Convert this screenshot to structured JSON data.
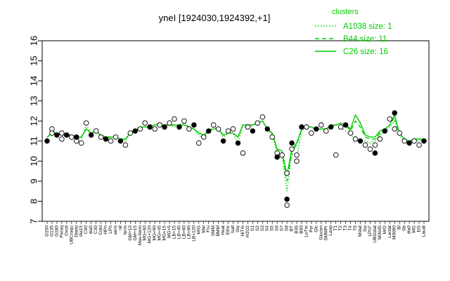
{
  "chart_data": {
    "type": "line",
    "title": "yneI [1924030,1924392,+1]",
    "ylim": [
      7,
      16
    ],
    "yticks": [
      7,
      8,
      9,
      10,
      11,
      12,
      13,
      14,
      15,
      16
    ],
    "grid": false,
    "legend": {
      "title": "clusters",
      "placement": "top-right",
      "color": "#00cc00",
      "entries": [
        {
          "label": "A1038 size: 1",
          "dash": "dotted"
        },
        {
          "label": "B44 size: 11",
          "dash": "dashed"
        },
        {
          "label": "C26 size: 16",
          "dash": "solid"
        }
      ]
    },
    "x_tick_labels": [
      "G150",
      "G135",
      "G180",
      "Paraq",
      "Oxctl",
      "UBCraqu",
      "Diami",
      "dia15",
      "C90",
      "dia5",
      "C30",
      "Cold",
      "HPh",
      "LPh",
      "aero",
      "nit",
      "ferm",
      "GM+10",
      "GM+15",
      "Mas-Nom",
      "MG+60",
      "MG+120",
      "MG+90",
      "MG+45",
      "MG+15",
      "MG+5",
      "LB+15",
      "LB+45",
      "LB+60",
      "LB+90",
      "LB+120",
      "M/G",
      "Mal",
      "Fru",
      "SMM",
      "BMM",
      "Heat",
      "Ethx",
      "Salt",
      "Gly",
      "HiTm",
      "H2O2",
      "S1",
      "S2",
      "S3",
      "S4",
      "S5",
      "S6",
      "S7",
      "S8",
      "BT",
      "B36",
      "B60",
      "LoTm",
      "Pyr",
      "Glc",
      "Glucon",
      "SMMPr",
      "Lexp",
      "T1",
      "T2",
      "T3",
      "T4",
      "T5",
      "Mstat",
      "Sw",
      "LPhT",
      "UBGstat",
      "M0045",
      "M/O",
      "Lactat",
      "M0090",
      "Bl",
      "Sb",
      "dia0",
      "MG",
      "EG",
      "Lauat"
    ],
    "series": [
      {
        "name": "A1038 size: 1",
        "values": [
          11.1,
          11.5,
          11.4,
          11.3,
          11.2,
          11.3,
          11.1,
          11.1,
          11.8,
          11.4,
          11.5,
          11.2,
          11.1,
          11.2,
          11.2,
          11.0,
          11.0,
          11.4,
          11.6,
          11.7,
          11.7,
          11.8,
          11.8,
          11.9,
          11.8,
          11.8,
          11.7,
          11.8,
          11.9,
          11.7,
          11.6,
          11.3,
          11.1,
          11.5,
          11.7,
          11.6,
          11.2,
          11.4,
          11.4,
          10.9,
          11.8,
          11.6,
          11.8,
          11.9,
          12.0,
          11.6,
          11.3,
          10.4,
          10.3,
          8.5,
          10.4,
          10.2,
          11.5,
          11.7,
          11.7,
          11.5,
          11.6,
          11.6,
          11.7,
          11.8,
          11.7,
          11.5,
          11.3,
          11.1,
          11.0,
          11.0,
          10.9,
          11.0,
          11.3,
          11.5,
          11.7,
          12.0,
          11.3,
          11.0,
          10.9,
          11.0,
          11.0,
          11.1
        ]
      },
      {
        "name": "B44 size: 11",
        "values": [
          11.2,
          11.4,
          11.4,
          11.3,
          11.3,
          11.3,
          11.2,
          11.2,
          11.6,
          11.4,
          11.5,
          11.3,
          11.2,
          11.2,
          11.2,
          11.1,
          11.1,
          11.4,
          11.5,
          11.7,
          11.7,
          11.7,
          11.8,
          11.8,
          11.8,
          11.8,
          11.8,
          11.8,
          11.8,
          11.7,
          11.6,
          11.4,
          11.3,
          11.5,
          11.6,
          11.6,
          11.3,
          11.4,
          11.4,
          11.2,
          11.8,
          11.8,
          11.8,
          11.9,
          12.0,
          11.6,
          11.4,
          10.6,
          10.5,
          9.0,
          10.5,
          10.8,
          11.6,
          11.7,
          11.7,
          11.6,
          11.6,
          11.6,
          11.7,
          11.8,
          11.9,
          11.8,
          11.5,
          12.0,
          11.7,
          11.2,
          11.1,
          11.1,
          11.4,
          11.6,
          11.8,
          12.2,
          11.4,
          11.1,
          11.0,
          11.1,
          11.1,
          11.1
        ]
      },
      {
        "name": "C26 size: 16",
        "values": [
          11.2,
          11.4,
          11.4,
          11.3,
          11.3,
          11.3,
          11.2,
          11.2,
          11.6,
          11.4,
          11.5,
          11.3,
          11.2,
          11.2,
          11.2,
          11.1,
          11.1,
          11.4,
          11.5,
          11.7,
          11.7,
          11.7,
          11.8,
          11.8,
          11.8,
          11.8,
          11.8,
          11.8,
          11.8,
          11.7,
          11.6,
          11.4,
          11.3,
          11.5,
          11.6,
          11.6,
          11.3,
          11.4,
          11.4,
          11.2,
          11.8,
          11.8,
          11.8,
          11.9,
          12.0,
          11.6,
          11.4,
          10.6,
          10.5,
          9.3,
          10.6,
          10.9,
          11.6,
          11.7,
          11.7,
          11.6,
          11.6,
          11.6,
          11.8,
          11.8,
          11.9,
          11.8,
          11.6,
          12.3,
          11.9,
          11.3,
          11.2,
          11.2,
          11.5,
          11.6,
          11.8,
          12.3,
          11.4,
          11.1,
          11.0,
          11.1,
          11.1,
          11.1
        ]
      }
    ],
    "points": [
      {
        "c": 0,
        "y": 11.0
      },
      {
        "c": 1,
        "y": 11.6
      },
      {
        "c": 1,
        "y": 11.4
      },
      {
        "c": 2,
        "y": 11.3
      },
      {
        "c": 3,
        "y": 11.4
      },
      {
        "c": 3,
        "y": 11.1
      },
      {
        "c": 4,
        "y": 11.3
      },
      {
        "c": 5,
        "y": 11.2
      },
      {
        "c": 6,
        "y": 11.0
      },
      {
        "c": 6,
        "y": 11.2
      },
      {
        "c": 7,
        "y": 10.9
      },
      {
        "c": 8,
        "y": 11.9
      },
      {
        "c": 9,
        "y": 11.3
      },
      {
        "c": 10,
        "y": 11.5
      },
      {
        "c": 11,
        "y": 11.2
      },
      {
        "c": 12,
        "y": 11.1
      },
      {
        "c": 13,
        "y": 11.0
      },
      {
        "c": 14,
        "y": 11.2
      },
      {
        "c": 15,
        "y": 11.0
      },
      {
        "c": 16,
        "y": 10.8
      },
      {
        "c": 17,
        "y": 11.4
      },
      {
        "c": 18,
        "y": 11.5
      },
      {
        "c": 19,
        "y": 11.6
      },
      {
        "c": 20,
        "y": 11.9
      },
      {
        "c": 21,
        "y": 11.7
      },
      {
        "c": 22,
        "y": 11.6
      },
      {
        "c": 23,
        "y": 11.8
      },
      {
        "c": 24,
        "y": 11.7
      },
      {
        "c": 25,
        "y": 11.9
      },
      {
        "c": 26,
        "y": 12.1
      },
      {
        "c": 27,
        "y": 11.7
      },
      {
        "c": 28,
        "y": 12.0
      },
      {
        "c": 29,
        "y": 11.6
      },
      {
        "c": 30,
        "y": 11.8
      },
      {
        "c": 31,
        "y": 10.9
      },
      {
        "c": 32,
        "y": 11.2
      },
      {
        "c": 33,
        "y": 11.5
      },
      {
        "c": 34,
        "y": 11.8
      },
      {
        "c": 35,
        "y": 11.6
      },
      {
        "c": 36,
        "y": 11.0
      },
      {
        "c": 37,
        "y": 11.5
      },
      {
        "c": 38,
        "y": 11.6
      },
      {
        "c": 39,
        "y": 10.9
      },
      {
        "c": 40,
        "y": 10.4
      },
      {
        "c": 41,
        "y": 11.7
      },
      {
        "c": 42,
        "y": 11.5
      },
      {
        "c": 43,
        "y": 11.9
      },
      {
        "c": 44,
        "y": 12.2
      },
      {
        "c": 45,
        "y": 11.6
      },
      {
        "c": 46,
        "y": 11.2
      },
      {
        "c": 47,
        "y": 10.4
      },
      {
        "c": 47,
        "y": 10.2
      },
      {
        "c": 48,
        "y": 10.3
      },
      {
        "c": 49,
        "y": 9.4
      },
      {
        "c": 49,
        "y": 8.1
      },
      {
        "c": 49,
        "y": 7.8
      },
      {
        "c": 50,
        "y": 10.6
      },
      {
        "c": 50,
        "y": 10.9
      },
      {
        "c": 51,
        "y": 10.0
      },
      {
        "c": 51,
        "y": 10.3
      },
      {
        "c": 52,
        "y": 11.7
      },
      {
        "c": 53,
        "y": 11.7
      },
      {
        "c": 54,
        "y": 11.4
      },
      {
        "c": 55,
        "y": 11.6
      },
      {
        "c": 56,
        "y": 11.8
      },
      {
        "c": 57,
        "y": 11.5
      },
      {
        "c": 58,
        "y": 11.7
      },
      {
        "c": 59,
        "y": 10.3
      },
      {
        "c": 60,
        "y": 11.7
      },
      {
        "c": 61,
        "y": 11.8
      },
      {
        "c": 62,
        "y": 11.4
      },
      {
        "c": 63,
        "y": 11.1
      },
      {
        "c": 64,
        "y": 11.0
      },
      {
        "c": 65,
        "y": 10.8
      },
      {
        "c": 66,
        "y": 10.6
      },
      {
        "c": 67,
        "y": 10.4
      },
      {
        "c": 67,
        "y": 10.8
      },
      {
        "c": 68,
        "y": 11.1
      },
      {
        "c": 69,
        "y": 11.5
      },
      {
        "c": 70,
        "y": 12.1
      },
      {
        "c": 71,
        "y": 11.6
      },
      {
        "c": 71,
        "y": 12.4
      },
      {
        "c": 72,
        "y": 11.4
      },
      {
        "c": 73,
        "y": 11.0
      },
      {
        "c": 74,
        "y": 10.9
      },
      {
        "c": 75,
        "y": 11.0
      },
      {
        "c": 76,
        "y": 10.8
      },
      {
        "c": 77,
        "y": 11.0
      }
    ]
  }
}
